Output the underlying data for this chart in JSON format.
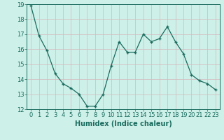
{
  "x": [
    0,
    1,
    2,
    3,
    4,
    5,
    6,
    7,
    8,
    9,
    10,
    11,
    12,
    13,
    14,
    15,
    16,
    17,
    18,
    19,
    20,
    21,
    22,
    23
  ],
  "y": [
    18.9,
    16.9,
    15.9,
    14.4,
    13.7,
    13.4,
    13.0,
    12.2,
    12.2,
    13.0,
    14.9,
    16.5,
    15.8,
    15.8,
    17.0,
    16.5,
    16.7,
    17.5,
    16.5,
    15.7,
    14.3,
    13.9,
    13.7,
    13.3
  ],
  "line_color": "#1a6b5e",
  "marker_color": "#1a6b5e",
  "bg_color": "#cdf0e8",
  "grid_color": "#d4b8bc",
  "xlabel": "Humidex (Indice chaleur)",
  "xlim": [
    -0.5,
    23.5
  ],
  "ylim": [
    12,
    19
  ],
  "yticks": [
    12,
    13,
    14,
    15,
    16,
    17,
    18,
    19
  ],
  "xtick_labels": [
    "0",
    "1",
    "2",
    "3",
    "4",
    "5",
    "6",
    "7",
    "8",
    "9",
    "10",
    "11",
    "12",
    "13",
    "14",
    "15",
    "16",
    "17",
    "18",
    "19",
    "20",
    "21",
    "22",
    "23"
  ],
  "label_fontsize": 7,
  "tick_fontsize": 6
}
